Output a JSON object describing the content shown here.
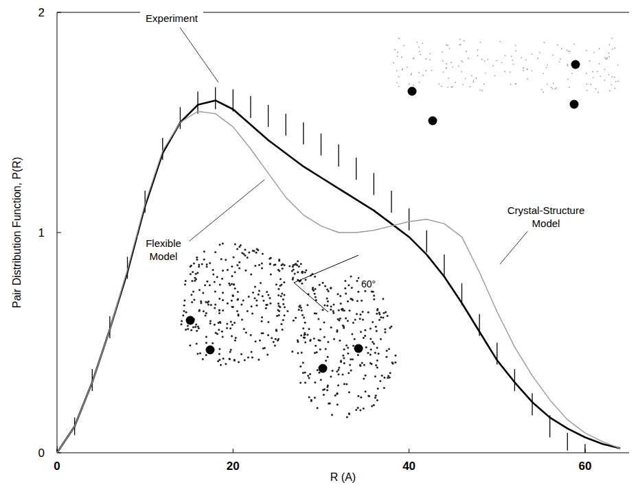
{
  "chart_data": {
    "type": "line",
    "x_label": "R (A)",
    "y_label": "Pair Distribution Function, P(R)",
    "xlim": [
      0,
      65
    ],
    "ylim": [
      0,
      2
    ],
    "xticks": [
      0,
      20,
      40,
      60
    ],
    "yticks": [
      0,
      1,
      2
    ],
    "grid": false,
    "annotations": [
      "60°"
    ],
    "x": [
      0,
      2,
      4,
      6,
      8,
      10,
      12,
      14,
      16,
      18,
      20,
      22,
      24,
      26,
      28,
      30,
      32,
      34,
      36,
      38,
      40,
      42,
      44,
      46,
      48,
      50,
      52,
      54,
      56,
      58,
      60,
      62,
      64
    ],
    "series": [
      {
        "name": "Experiment",
        "type": "errorbar",
        "color": "#000000",
        "values": [
          0,
          0.12,
          0.33,
          0.57,
          0.84,
          1.14,
          1.38,
          1.52,
          1.59,
          1.61,
          1.6,
          1.57,
          1.53,
          1.49,
          1.45,
          1.4,
          1.35,
          1.29,
          1.22,
          1.14,
          1.06,
          0.96,
          0.85,
          0.72,
          0.58,
          0.45,
          0.33,
          0.22,
          0.12,
          0.05,
          0.01,
          null,
          null
        ],
        "errors": [
          0.03,
          0.04,
          0.05,
          0.05,
          0.05,
          0.05,
          0.05,
          0.05,
          0.05,
          0.05,
          0.05,
          0.05,
          0.05,
          0.05,
          0.05,
          0.05,
          0.05,
          0.05,
          0.05,
          0.05,
          0.05,
          0.05,
          0.05,
          0.05,
          0.05,
          0.05,
          0.05,
          0.05,
          0.05,
          0.04,
          0.03,
          null,
          null
        ]
      },
      {
        "name": "Flexible Model",
        "type": "line",
        "color": "#000000",
        "line_style": "solid",
        "values": [
          0,
          0.12,
          0.32,
          0.56,
          0.82,
          1.12,
          1.36,
          1.5,
          1.58,
          1.6,
          1.56,
          1.49,
          1.42,
          1.36,
          1.3,
          1.25,
          1.2,
          1.15,
          1.1,
          1.04,
          0.98,
          0.9,
          0.8,
          0.68,
          0.55,
          0.42,
          0.32,
          0.23,
          0.16,
          0.11,
          0.07,
          0.04,
          0.02
        ]
      },
      {
        "name": "Crystal-Structure Model",
        "type": "line",
        "color": "#9a9a9a",
        "line_style": "solid",
        "values": [
          0,
          0.12,
          0.32,
          0.56,
          0.83,
          1.13,
          1.37,
          1.5,
          1.55,
          1.54,
          1.48,
          1.38,
          1.27,
          1.16,
          1.08,
          1.03,
          1.0,
          1.0,
          1.01,
          1.03,
          1.05,
          1.06,
          1.04,
          0.98,
          0.82,
          0.64,
          0.48,
          0.35,
          0.24,
          0.15,
          0.09,
          0.05,
          0.02
        ]
      }
    ]
  }
}
